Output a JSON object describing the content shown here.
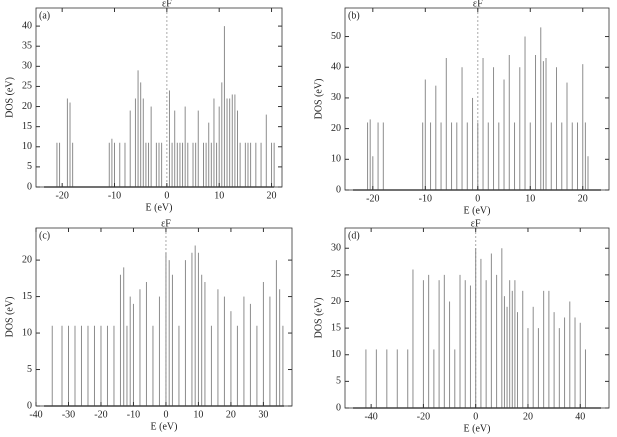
{
  "chart_data": [
    {
      "type": "spike",
      "label": "(a)",
      "fermi_label": "εF",
      "x_label": "E (eV)",
      "y_label": "DOS (eV)",
      "xlim": [
        -25,
        22
      ],
      "xticks": [
        -20,
        -10,
        0,
        10,
        20
      ],
      "ylim": [
        0,
        44.5
      ],
      "yticks": [
        0,
        5,
        10,
        15,
        20,
        25,
        30,
        35,
        40
      ],
      "series": [
        {
          "color": "#8c8c8c",
          "x": [
            -21,
            -20.5,
            -19,
            -18.5,
            -18,
            -11,
            -10.5,
            -10,
            -9,
            -8,
            -7,
            -6,
            -5.5,
            -5,
            -4.5,
            -4,
            -3.5,
            -3,
            -2,
            -1.5,
            -1,
            0.5,
            1,
            1.5,
            2,
            2.5,
            3,
            3.5,
            4,
            5,
            5.5,
            6,
            7,
            7.5,
            8,
            8.5,
            9,
            9.5,
            10,
            10.5,
            11,
            11.5,
            12,
            12.5,
            13,
            13.5,
            14,
            15,
            15.5,
            16,
            17,
            18,
            19,
            20,
            20.5
          ],
          "values": [
            11,
            11,
            22,
            21,
            11,
            11,
            12,
            11,
            11,
            11,
            19,
            22,
            29,
            26,
            22,
            11,
            11,
            20,
            11,
            11,
            11,
            24,
            11,
            19,
            11,
            11,
            11,
            20,
            11,
            11,
            11,
            19,
            11,
            11,
            16,
            11,
            22,
            11,
            20,
            26,
            40,
            22,
            22,
            23,
            23,
            19,
            11,
            11,
            11,
            11,
            11,
            11,
            18,
            11,
            11
          ]
        }
      ]
    },
    {
      "type": "spike",
      "label": "(b)",
      "fermi_label": "εF",
      "x_label": "E (eV)",
      "y_label": "DOS (eV)",
      "xlim": [
        -25.3,
        25
      ],
      "xticks": [
        -20,
        -10,
        0,
        10,
        20
      ],
      "ylim": [
        0,
        59.3
      ],
      "yticks": [
        0,
        10,
        20,
        30,
        40,
        50
      ],
      "series": [
        {
          "color": "#8c8c8c",
          "x": [
            -21,
            -20.5,
            -20,
            -19,
            -18,
            -10.5,
            -10,
            -9,
            -8,
            -7,
            -6,
            -5,
            -4,
            -3,
            -2,
            -1,
            0,
            1,
            2,
            3,
            4,
            5,
            6,
            7,
            8,
            9,
            10,
            11,
            12,
            12.5,
            13,
            14,
            15,
            16,
            17,
            18,
            19,
            20,
            20.5,
            21
          ],
          "values": [
            22,
            23,
            11,
            22,
            22,
            22,
            36,
            22,
            34,
            22,
            43,
            22,
            22,
            40,
            22,
            30,
            22,
            43,
            22,
            40,
            22,
            36,
            44,
            22,
            40,
            50,
            22,
            44,
            53,
            42,
            43,
            22,
            40,
            22,
            35,
            22,
            22,
            41,
            22,
            11
          ]
        }
      ]
    },
    {
      "type": "spike",
      "label": "(c)",
      "fermi_label": "εF",
      "x_label": "E (eV)",
      "y_label": "DOS (eV)",
      "xlim": [
        -40,
        38.8
      ],
      "xticks": [
        -40,
        -30,
        -20,
        -10,
        0,
        10,
        20,
        30
      ],
      "ylim": [
        0,
        24.4
      ],
      "yticks": [
        0,
        5,
        10,
        15,
        20
      ],
      "series": [
        {
          "color": "#8c8c8c",
          "x": [
            -35,
            -32,
            -30,
            -28,
            -26,
            -24,
            -22,
            -20,
            -18,
            -16,
            -14,
            -13,
            -12,
            -11,
            -10,
            -8,
            -6,
            -4,
            -2,
            0,
            1,
            2,
            4,
            6,
            8,
            9,
            10,
            11,
            12,
            14,
            16,
            18,
            20,
            22,
            24,
            26,
            28,
            30,
            32,
            34,
            35,
            36
          ],
          "values": [
            11,
            11,
            11,
            11,
            11,
            11,
            11,
            11,
            11,
            11,
            18,
            19,
            11,
            15,
            14,
            16,
            17,
            11,
            15,
            21,
            20,
            18,
            11,
            20,
            21,
            22,
            21,
            18,
            17,
            11,
            16,
            15,
            13,
            11,
            15,
            14,
            11,
            17,
            15,
            20,
            16,
            11
          ]
        }
      ]
    },
    {
      "type": "spike",
      "label": "(d)",
      "fermi_label": "εF",
      "x_label": "E (eV)",
      "y_label": "DOS (eV)",
      "xlim": [
        -50,
        51
      ],
      "xticks": [
        -40,
        -20,
        0,
        20,
        40
      ],
      "ylim": [
        0,
        33.8
      ],
      "yticks": [
        0,
        5,
        10,
        15,
        20,
        25,
        30
      ],
      "series": [
        {
          "color": "#8c8c8c",
          "x": [
            -42,
            -38,
            -34,
            -30,
            -26,
            -24,
            -20,
            -18,
            -16,
            -14,
            -12,
            -10,
            -8,
            -6,
            -4,
            -2,
            0,
            2,
            4,
            6,
            8,
            10,
            11,
            12,
            13,
            14,
            15,
            16,
            18,
            20,
            22,
            24,
            26,
            28,
            30,
            32,
            34,
            36,
            38,
            40,
            42
          ],
          "values": [
            11,
            11,
            11,
            11,
            11,
            26,
            24,
            25,
            11,
            24,
            25,
            20,
            11,
            25,
            24,
            23,
            30,
            28,
            24,
            29,
            25,
            30,
            21,
            19,
            24,
            22,
            24,
            18,
            22,
            15,
            19,
            15,
            22,
            22,
            18,
            15,
            17,
            20,
            17,
            16,
            11
          ]
        }
      ]
    }
  ]
}
